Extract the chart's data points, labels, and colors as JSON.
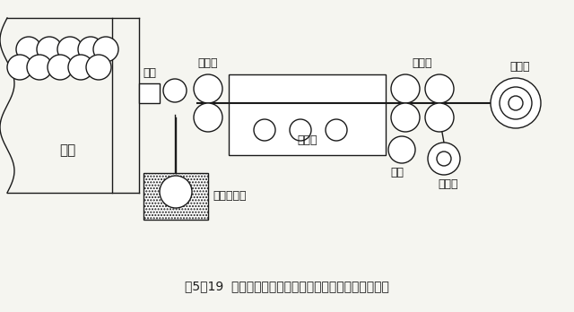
{
  "title": "图5－19  阵列式连续排铺法湿法制造连续无纬布的示意图",
  "title_fontsize": 10,
  "bg_color": "#f5f5f0",
  "fg_color": "#1a1a1a",
  "labels": {
    "shajia": "纱架",
    "zhengjing": "整纺",
    "jiyagun": "挤压辊",
    "hongganlu": "烘干炉",
    "yashuigun": "压实辊",
    "shouguangun": "收卷辊",
    "daojun": "导辊",
    "gelijizhi": "隔离纸",
    "shuzijinzancao": "树脂浸渍槽"
  },
  "fig_w": 6.4,
  "fig_h": 3.48,
  "dpi": 100
}
